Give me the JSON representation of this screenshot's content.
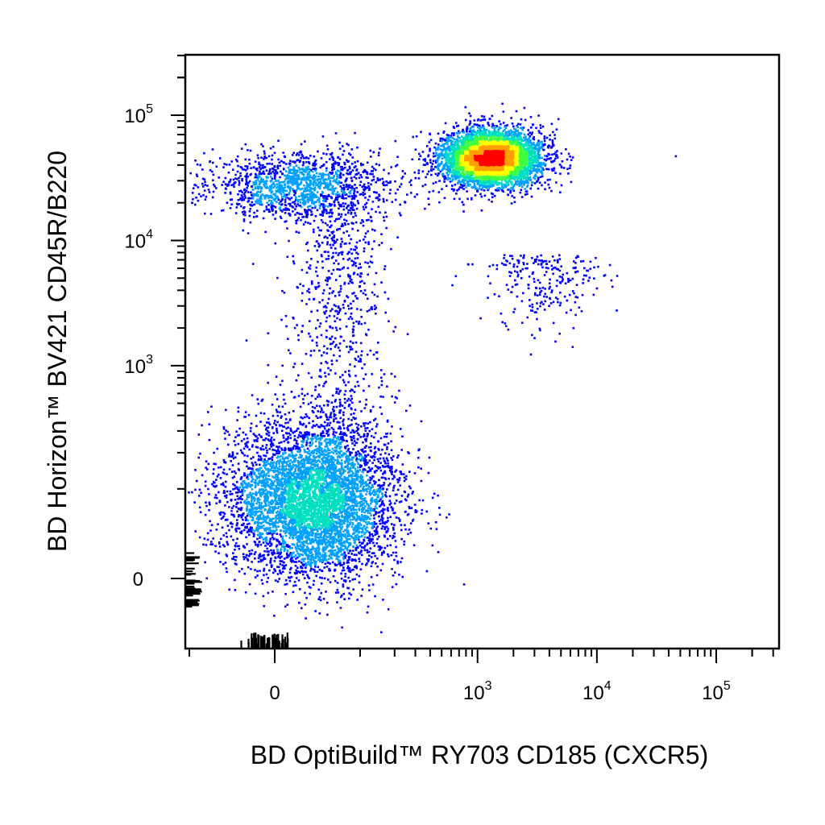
{
  "chart_data": {
    "type": "scatter",
    "subtype": "flow-cytometry-density-dot-plot",
    "xlabel": "BD OptiBuild™ RY703 CD185 (CXCR5)",
    "ylabel": "BD Horizon™ BV421 CD45R/B220",
    "x_scale": "biexponential",
    "y_scale": "biexponential",
    "xlim": [
      -300,
      300000
    ],
    "ylim": [
      -220,
      250000
    ],
    "x_ticks": [
      {
        "value": 0,
        "base": "0",
        "exp": ""
      },
      {
        "value": 1000,
        "base": "10",
        "exp": "3"
      },
      {
        "value": 10000,
        "base": "10",
        "exp": "4"
      },
      {
        "value": 100000,
        "base": "10",
        "exp": "5"
      }
    ],
    "y_ticks": [
      {
        "value": 0,
        "base": "0",
        "exp": ""
      },
      {
        "value": 1000,
        "base": "10",
        "exp": "3"
      },
      {
        "value": 10000,
        "base": "10",
        "exp": "4"
      },
      {
        "value": 100000,
        "base": "10",
        "exp": "5"
      }
    ],
    "grid": false,
    "legend": "none",
    "color_scale": [
      "#0000ff",
      "#00a0ff",
      "#00e0c0",
      "#40ff40",
      "#ffff00",
      "#ffa000",
      "#ff0000"
    ],
    "populations": [
      {
        "x_center": 30,
        "y_center": 80,
        "description_count": 5500,
        "spread_x": 0.55,
        "spread_y": 0.5
      },
      {
        "x_center": 1300,
        "y_center": 46000,
        "description_count": 5200,
        "spread_x": 0.32,
        "spread_y": 0.18
      },
      {
        "x_center": 20,
        "y_center": 28000,
        "description_count": 1500,
        "spread_x": 0.6,
        "spread_y": 0.22
      },
      {
        "x_center": 60,
        "y_center": 1500,
        "description_count": 900,
        "spread_x": 0.45,
        "spread_y": 0.9
      },
      {
        "x_center": 3500,
        "y_center": 5000,
        "description_count": 250,
        "spread_x": 0.4,
        "spread_y": 0.6
      },
      {
        "x_center": 45000,
        "y_center": 48000,
        "description_count": 1,
        "spread_x": 0,
        "spread_y": 0
      }
    ]
  }
}
